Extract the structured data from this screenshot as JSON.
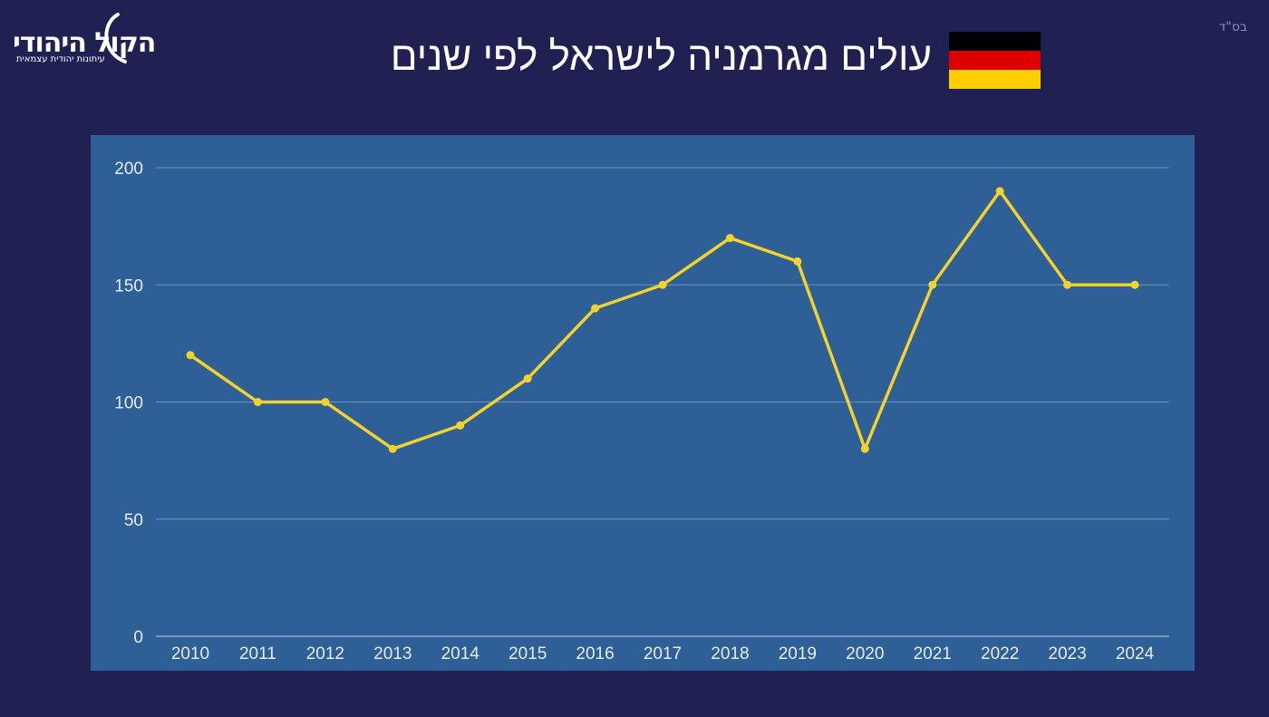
{
  "top_right_mark": "בס\"ד",
  "logo": {
    "name": "הקול היהודי",
    "tagline": "עיתונות יהודית עצמאית"
  },
  "title": "עולים מגרמניה לישראל לפי שנים",
  "flag": {
    "name": "germany-flag",
    "colors": [
      "#000000",
      "#DD0000",
      "#FFCE00"
    ]
  },
  "colors": {
    "background": "#212052",
    "panel": "#2e5f96",
    "line": "#f2d22c"
  },
  "chart_data": {
    "type": "line",
    "title": "עולים מגרמניה לישראל לפי שנים",
    "xlabel": "",
    "ylabel": "",
    "categories": [
      "2010",
      "2011",
      "2012",
      "2013",
      "2014",
      "2015",
      "2016",
      "2017",
      "2018",
      "2019",
      "2020",
      "2021",
      "2022",
      "2023",
      "2024"
    ],
    "series": [
      {
        "values": [
          120,
          100,
          100,
          80,
          90,
          110,
          140,
          150,
          170,
          160,
          80,
          150,
          190,
          150,
          150
        ]
      }
    ],
    "ylim": [
      0,
      200
    ],
    "yticks": [
      0,
      50,
      100,
      150,
      200
    ],
    "grid": true,
    "legend": "none"
  }
}
